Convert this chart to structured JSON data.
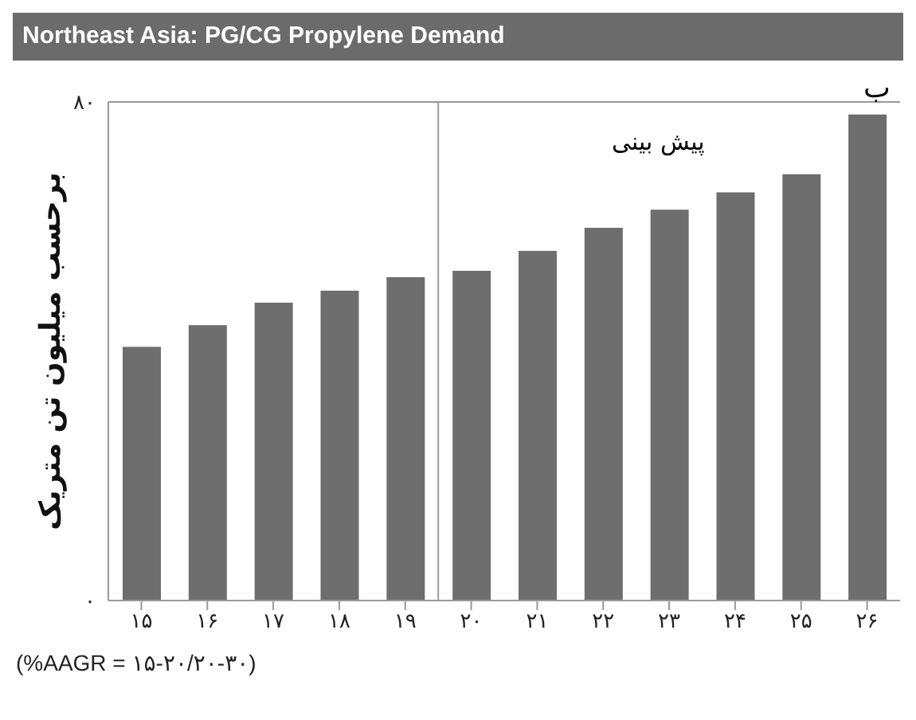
{
  "chart_data": {
    "type": "bar",
    "title": "Northeast Asia: PG/CG Propylene Demand",
    "ylabel": "برحسب میلیون تن متریک",
    "x": [
      15,
      16,
      17,
      18,
      19,
      20,
      21,
      22,
      23,
      24,
      25,
      26
    ],
    "values": [
      40.7,
      44.2,
      47.8,
      49.7,
      51.9,
      52.9,
      56.1,
      59.8,
      62.7,
      65.5,
      68.4,
      78
    ],
    "color": "#6e6e6e",
    "xlim": [
      14.5,
      26.5
    ],
    "xticks": [
      {
        "value": 15,
        "label": "۱۵"
      },
      {
        "value": 16,
        "label": "۱۶"
      },
      {
        "value": 17,
        "label": "۱۷"
      },
      {
        "value": 18,
        "label": "۱۸"
      },
      {
        "value": 19,
        "label": "۱۹"
      },
      {
        "value": 20,
        "label": "۲۰"
      },
      {
        "value": 21,
        "label": "۲۱"
      },
      {
        "value": 22,
        "label": "۲۲"
      },
      {
        "value": 23,
        "label": "۲۳"
      },
      {
        "value": 24,
        "label": "۲۴"
      },
      {
        "value": 25,
        "label": "۲۵"
      },
      {
        "value": 26,
        "label": "۲۶"
      }
    ],
    "ylim": [
      0,
      80
    ],
    "yticks": [
      {
        "value": 0,
        "label": "۰"
      },
      {
        "value": 80,
        "label": "۸۰"
      }
    ],
    "grid": false,
    "legend": false,
    "ref_lines": [
      {
        "axis": "x",
        "value": 19.5,
        "color": "#9a9a9a"
      }
    ],
    "annotations": [
      "ب",
      "(%AAGR = ۱۵-۲۰/۲۰-۳۰)",
      "پیش بینی"
    ]
  }
}
